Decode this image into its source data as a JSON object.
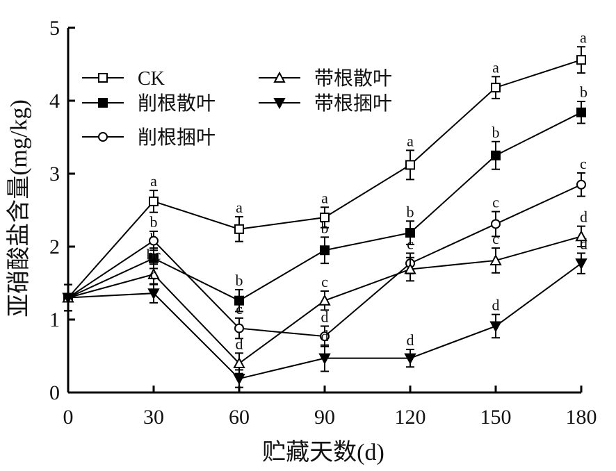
{
  "chart_data": {
    "type": "line",
    "xlabel": "贮藏天数(d)",
    "ylabel": "亚硝酸盐含量(mg/kg)",
    "xlim": [
      0,
      180
    ],
    "ylim": [
      0,
      5
    ],
    "x": [
      0,
      30,
      60,
      90,
      120,
      150,
      180
    ],
    "xticks": [
      "0",
      "30",
      "60",
      "90",
      "120",
      "150",
      "180"
    ],
    "yticks": [
      "0",
      "1",
      "2",
      "3",
      "4",
      "5"
    ],
    "grid": false,
    "legend_position": "top-left",
    "error_bars": true,
    "series": [
      {
        "name": "CK",
        "marker": "square-open",
        "values": [
          1.3,
          2.62,
          2.24,
          2.4,
          3.12,
          4.18,
          4.56
        ],
        "errors": [
          0.18,
          0.15,
          0.17,
          0.14,
          0.2,
          0.15,
          0.18
        ],
        "labels": [
          "",
          "a",
          "a",
          "a",
          "a",
          "a",
          "a"
        ]
      },
      {
        "name": "削根散叶",
        "marker": "square-filled",
        "values": [
          1.3,
          1.84,
          1.26,
          1.95,
          2.19,
          3.25,
          3.84
        ],
        "errors": [
          0.18,
          0.14,
          0.15,
          0.18,
          0.16,
          0.19,
          0.15
        ],
        "labels": [
          "",
          "b",
          "b",
          "b",
          "b",
          "b",
          "b"
        ]
      },
      {
        "name": "削根捆叶",
        "marker": "circle-open",
        "values": [
          1.3,
          2.08,
          0.88,
          0.77,
          1.77,
          2.31,
          2.85
        ],
        "errors": [
          0.18,
          0.13,
          0.14,
          0.14,
          0.14,
          0.17,
          0.16
        ],
        "labels": [
          "",
          "b",
          "c",
          "d",
          "c",
          "c",
          "c"
        ]
      },
      {
        "name": "带根散叶",
        "marker": "triangle-up-open",
        "values": [
          1.3,
          1.62,
          0.4,
          1.26,
          1.69,
          1.81,
          2.14
        ],
        "errors": [
          0.18,
          0.14,
          0.14,
          0.13,
          0.16,
          0.17,
          0.14
        ],
        "labels": [
          "",
          "bc",
          "d",
          "c",
          "",
          "c",
          "d"
        ]
      },
      {
        "name": "带根捆叶",
        "marker": "triangle-down-filled",
        "values": [
          1.3,
          1.36,
          0.19,
          0.47,
          0.47,
          0.91,
          1.77
        ],
        "errors": [
          0.18,
          0.13,
          0.12,
          0.18,
          0.12,
          0.16,
          0.14
        ],
        "labels": [
          "",
          "c",
          "",
          "d",
          "d",
          "d",
          "d"
        ]
      }
    ]
  }
}
